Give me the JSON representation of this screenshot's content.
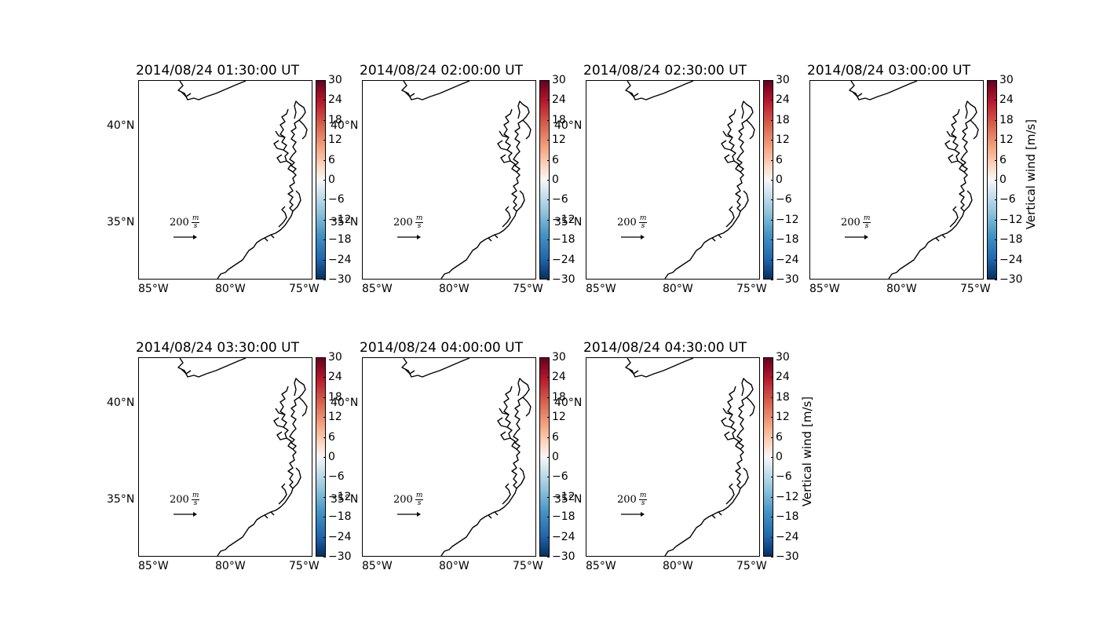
{
  "figure": {
    "colorbar": {
      "ticks": [
        "30",
        "24",
        "18",
        "12",
        "6",
        "0",
        "−6",
        "−12",
        "−18",
        "−24",
        "−30"
      ],
      "label": "Vertical wind [m/s]",
      "vmin": -30,
      "vmax": 30,
      "cmap": "RdBu_r"
    },
    "lon_labels": [
      "85°W",
      "80°W",
      "75°W"
    ],
    "lat_labels": [
      "40°N",
      "35°N"
    ],
    "quiver_key": {
      "value": "200",
      "unit_num": "m",
      "unit_den": "s"
    },
    "panels": [
      {
        "title": "2014/08/24 01:30:00 UT"
      },
      {
        "title": "2014/08/24 02:00:00 UT"
      },
      {
        "title": "2014/08/24 02:30:00 UT"
      },
      {
        "title": "2014/08/24 03:00:00 UT"
      },
      {
        "title": "2014/08/24 03:30:00 UT"
      },
      {
        "title": "2014/08/24 04:00:00 UT"
      },
      {
        "title": "2014/08/24 04:30:00 UT"
      }
    ]
  }
}
